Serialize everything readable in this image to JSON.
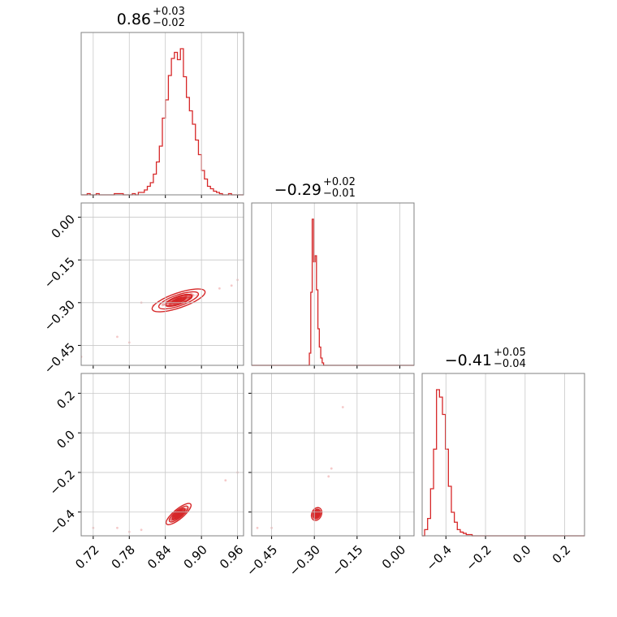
{
  "chart_data": {
    "type": "corner",
    "color": "#d62728",
    "grid": true,
    "parameters": [
      {
        "title": {
          "median": "0.86",
          "plus": "+0.03",
          "minus": "−0.02"
        },
        "range": [
          0.7,
          0.97
        ],
        "ticks": [
          0.72,
          0.78,
          0.84,
          0.9,
          0.96
        ],
        "tick_labels": [
          "0.72",
          "0.78",
          "0.84",
          "0.90",
          "0.96"
        ],
        "histogram": {
          "bin_start": 0.7,
          "bin_width": 0.005,
          "counts": [
            0,
            0,
            1,
            0,
            0,
            1,
            0,
            0,
            0,
            0,
            0,
            1,
            1,
            1,
            0,
            0,
            0,
            1,
            0,
            2,
            2,
            4,
            7,
            10,
            17,
            27,
            40,
            63,
            78,
            98,
            112,
            117,
            111,
            120,
            97,
            80,
            69,
            58,
            45,
            33,
            20,
            13,
            7,
            5,
            3,
            2,
            1,
            0,
            0,
            1,
            0,
            0,
            0,
            0
          ]
        }
      },
      {
        "title": {
          "median": "−0.29",
          "plus": "+0.02",
          "minus": "−0.01"
        },
        "range": [
          -0.52,
          0.05
        ],
        "ticks": [
          -0.45,
          -0.3,
          -0.15,
          0.0
        ],
        "tick_labels": [
          "−0.45",
          "−0.30",
          "−0.15",
          "0.00"
        ],
        "histogram": {
          "bin_start": -0.52,
          "bin_width": 0.01,
          "counts": [
            0,
            0,
            0,
            0,
            0,
            0,
            0,
            0,
            0,
            0,
            0,
            0,
            0,
            0,
            0,
            0,
            0,
            0,
            0,
            0,
            0,
            0,
            0,
            0,
            0,
            0,
            0,
            0,
            0,
            0,
            0,
            0,
            0,
            0,
            0,
            0,
            0,
            0,
            0,
            0,
            0,
            0,
            0,
            0,
            0,
            0,
            0,
            0,
            0,
            0,
            0,
            0,
            0,
            0,
            0,
            0,
            0
          ]
        },
        "histogram_values": [
          {
            "x": -0.32,
            "count": 0
          },
          {
            "x": -0.315,
            "count": 10
          },
          {
            "x": -0.31,
            "count": 60
          },
          {
            "x": -0.305,
            "count": 120
          },
          {
            "x": -0.3,
            "count": 85
          },
          {
            "x": -0.295,
            "count": 90
          },
          {
            "x": -0.29,
            "count": 62
          },
          {
            "x": -0.285,
            "count": 30
          },
          {
            "x": -0.28,
            "count": 15
          },
          {
            "x": -0.275,
            "count": 6
          },
          {
            "x": -0.27,
            "count": 2
          },
          {
            "x": -0.265,
            "count": 0
          }
        ]
      },
      {
        "title": {
          "median": "−0.41",
          "plus": "+0.05",
          "minus": "−0.04"
        },
        "range": [
          -0.52,
          0.3
        ],
        "ticks": [
          -0.4,
          -0.2,
          0.0,
          0.2
        ],
        "tick_labels": [
          "−0.4",
          "−0.2",
          "0.0",
          "0.2"
        ],
        "histogram_values": [
          {
            "x": -0.5,
            "count": 5
          },
          {
            "x": -0.485,
            "count": 14
          },
          {
            "x": -0.47,
            "count": 38
          },
          {
            "x": -0.455,
            "count": 70
          },
          {
            "x": -0.44,
            "count": 118
          },
          {
            "x": -0.425,
            "count": 112
          },
          {
            "x": -0.41,
            "count": 98
          },
          {
            "x": -0.395,
            "count": 70
          },
          {
            "x": -0.38,
            "count": 40
          },
          {
            "x": -0.365,
            "count": 19
          },
          {
            "x": -0.35,
            "count": 11
          },
          {
            "x": -0.335,
            "count": 5
          },
          {
            "x": -0.32,
            "count": 3
          },
          {
            "x": -0.305,
            "count": 2
          },
          {
            "x": -0.29,
            "count": 1
          },
          {
            "x": -0.275,
            "count": 1
          },
          {
            "x": -0.26,
            "count": 0
          }
        ]
      }
    ],
    "pairs": [
      {
        "x_param": 0,
        "y_param": 1,
        "center": [
          0.862,
          -0.292
        ],
        "slope": 0.72,
        "spread_major": 0.03,
        "spread_minor": 0.006,
        "scatter": [
          [
            0.7,
            -0.49
          ],
          [
            0.76,
            -0.42
          ],
          [
            0.78,
            -0.44
          ],
          [
            0.82,
            -0.31
          ],
          [
            0.8,
            -0.3
          ],
          [
            0.95,
            -0.24
          ],
          [
            0.93,
            -0.25
          ],
          [
            0.96,
            -0.22
          ]
        ]
      },
      {
        "x_param": 0,
        "y_param": 2,
        "center": [
          0.862,
          -0.41
        ],
        "slope": 2.5,
        "spread_major": 0.03,
        "spread_minor": 0.006,
        "scatter": [
          [
            0.72,
            -0.48
          ],
          [
            0.76,
            -0.48
          ],
          [
            0.78,
            -0.5
          ],
          [
            0.96,
            -0.2
          ],
          [
            0.94,
            -0.24
          ],
          [
            0.8,
            -0.49
          ]
        ]
      },
      {
        "x_param": 1,
        "y_param": 2,
        "center": [
          -0.292,
          -0.41
        ],
        "slope": 3.2,
        "spread_major": 0.018,
        "spread_minor": 0.005,
        "scatter": [
          [
            -0.5,
            -0.48
          ],
          [
            -0.45,
            -0.48
          ],
          [
            -0.2,
            0.13
          ],
          [
            -0.24,
            -0.18
          ],
          [
            -0.25,
            -0.22
          ]
        ]
      }
    ]
  }
}
